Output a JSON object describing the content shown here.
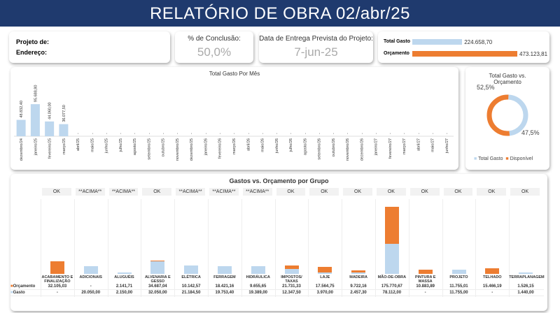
{
  "header": {
    "title": "RELATÓRIO DE OBRA   02/abr/25"
  },
  "project": {
    "project_label": "Projeto de:",
    "address_label": "Endereço:"
  },
  "completion": {
    "label": "% de Conclusão:",
    "value": "50,0%",
    "percent": 50
  },
  "delivery": {
    "label": "Data de Entrega Prevista do Projeto:",
    "value": "7-jun-25"
  },
  "summary": {
    "spent_label": "Total Gasto",
    "spent_value": "224.658,70",
    "spent": 224658.7,
    "budget_label": "Orçamento",
    "budget_value": "473.123,81",
    "budget": 473123.81
  },
  "colors": {
    "gasto": "#bdd7ee",
    "orcamento": "#ed7d31",
    "title_bg": "#1f3a6e"
  },
  "chart_data": [
    {
      "type": "bar",
      "title": "Total Gasto Por Mês",
      "categories": [
        "dezembro/24",
        "janeiro/25",
        "fevereiro/25",
        "março/25",
        "abril/25",
        "maio/25",
        "junho/25",
        "julho/25",
        "agosto/25",
        "setembro/25",
        "outubro/25",
        "novembro/25",
        "dezembro/25",
        "janeiro/26",
        "fevereiro/26",
        "março/26",
        "abril/26",
        "maio/26",
        "junho/26",
        "julho/26",
        "agosto/26",
        "setembro/26",
        "outubro/26",
        "novembro/26",
        "dezembro/26",
        "janeiro/27",
        "fevereiro/27",
        "março/27",
        "abril/27",
        "maio/27",
        "junho/27"
      ],
      "values": [
        48832.4,
        95688.8,
        44060.0,
        36077.5,
        0,
        0,
        0,
        0,
        0,
        0,
        0,
        0,
        0,
        0,
        0,
        0,
        0,
        0,
        0,
        0,
        0,
        0,
        0,
        0,
        0,
        0,
        0,
        0,
        0,
        0,
        0
      ],
      "labels": [
        "48.832,40",
        "95.688,80",
        "44.060,00",
        "36.077,50",
        "-",
        "-",
        "-",
        "-",
        "-",
        "-",
        "-",
        "-",
        "-",
        "-",
        "-",
        "-",
        "-",
        "-",
        "-",
        "-",
        "-",
        "-",
        "-",
        "-",
        "-",
        "-",
        "-",
        "-",
        "-",
        "-",
        "-"
      ]
    },
    {
      "type": "pie",
      "title": "Total Gasto vs. Orçamento",
      "categories": [
        "Total Gasto",
        "Disponível"
      ],
      "values": [
        47.5,
        52.5
      ],
      "labels": [
        "47,5%",
        "52,5%"
      ],
      "legend": "bottom"
    },
    {
      "type": "bar",
      "title": "Gastos vs. Orçamento por Grupo",
      "categories": [
        "ACABAMENTO E FINALIZAÇÃO",
        "ADICIONAIS",
        "ALUGUÉIS",
        "ALVENARIA E GESSO",
        "ELÉTRICA",
        "FERRAGEM",
        "HIDRÁULICA",
        "IMPOSTOS/ TAXAS",
        "LAJE",
        "MADEIRA",
        "MÃO-DE-OBRA",
        "PINTURA E MASSA",
        "PROJETO",
        "TELHADO",
        "TERRAPLANAGEM"
      ],
      "status": [
        "OK",
        "**ACIMA**",
        "**ACIMA**",
        "OK",
        "**ACIMA**",
        "**ACIMA**",
        "**ACIMA**",
        "OK",
        "OK",
        "OK",
        "OK",
        "OK",
        "OK",
        "OK",
        "OK"
      ],
      "series": [
        {
          "name": "Orçamento",
          "values": [
            32105.03,
            0,
            2141.71,
            34687.04,
            10142.57,
            18421.16,
            9655.65,
            21731.33,
            17564.75,
            9722.16,
            175770.67,
            10883.89,
            11755.01,
            15466.19,
            1526.15
          ],
          "labels": [
            "32.105,03",
            "-",
            "2.141,71",
            "34.687,04",
            "10.142,57",
            "18.421,16",
            "9.655,65",
            "21.731,33",
            "17.564,75",
            "9.722,16",
            "175.770,67",
            "10.883,89",
            "11.755,01",
            "15.466,19",
            "1.526,15"
          ]
        },
        {
          "name": "Gasto",
          "values": [
            0,
            20050.0,
            2150.0,
            32050.0,
            21184.5,
            19753.4,
            19389.0,
            12347.5,
            3970.0,
            2457.3,
            78112.0,
            0,
            11755.0,
            0,
            1440.0
          ],
          "labels": [
            "-",
            "20.050,00",
            "2.150,00",
            "32.050,00",
            "21.184,50",
            "19.753,40",
            "19.389,00",
            "12.347,50",
            "3.970,00",
            "2.457,30",
            "78.112,00",
            "-",
            "11.755,00",
            "-",
            "1.440,00"
          ]
        }
      ]
    }
  ]
}
